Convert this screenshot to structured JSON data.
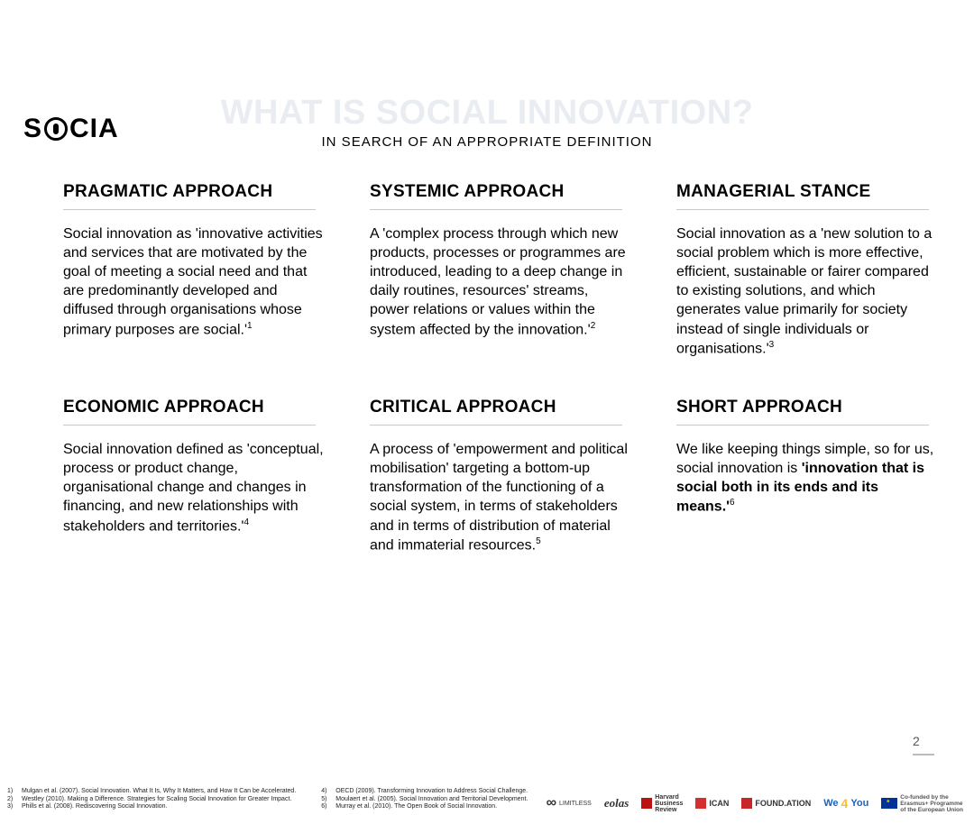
{
  "logo": {
    "pre": "S",
    "post": "CIA"
  },
  "title": {
    "main": "WHAT IS SOCIAL INNOVATION?",
    "main_color": "#e9edf2",
    "sub": "IN SEARCH OF AN APPROPRIATE DEFINITION"
  },
  "approaches": [
    {
      "heading": "PRAGMATIC APPROACH",
      "body_pre": "Social innovation as 'innovative activities and services that are motivated by the goal of meeting a social need and that are predominantly developed and diffused through organisations whose primary purposes are social.'",
      "ref": "1"
    },
    {
      "heading": "SYSTEMIC APPROACH",
      "body_pre": "A 'complex process through which new products, processes or programmes are introduced, leading to a deep change in daily routines, resources' streams, power relations or values within the system affected by the innovation.'",
      "ref": "2"
    },
    {
      "heading": "MANAGERIAL STANCE",
      "body_pre": "Social innovation as a 'new solution to a social problem which is more effective, efficient, sustainable or fairer compared to existing solutions, and which generates value primarily for society instead of single individuals or organisations.'",
      "ref": "3"
    },
    {
      "heading": "ECONOMIC APPROACH",
      "body_pre": "Social innovation defined as 'conceptual, process or product change, organisational change and changes in financing, and new relationships with stakeholders and territories.'",
      "ref": "4"
    },
    {
      "heading": "CRITICAL APPROACH",
      "body_pre": "A process of 'empowerment and political mobilisation' targeting a bottom-up transformation of the functioning of a social system, in terms of stakeholders and in terms of distribution of material and immaterial resources.",
      "ref": "5"
    },
    {
      "heading": "SHORT APPROACH",
      "body_pre": "We like keeping things simple, so for us, social innovation is ",
      "bold": "'innovation that is social both in its ends and its means.'",
      "ref": "6"
    }
  ],
  "page_number": "2",
  "references_left": [
    {
      "n": "1)",
      "t": "Mulgan et al. (2007). Social Innovation. What It Is, Why It Matters, and How It Can be Accelerated."
    },
    {
      "n": "2)",
      "t": "Westley (2010). Making a Difference. Strategies for Scaling Social Innovation for Greater Impact."
    },
    {
      "n": "3)",
      "t": "Phills et al. (2008). Rediscovering Social Innovation."
    }
  ],
  "references_right": [
    {
      "n": "4)",
      "t": "OECD (2009). Transforming Innovation to Address Social Challenge."
    },
    {
      "n": "5)",
      "t": "Moulaert et al. (2005). Social Innovation and Territorial Development."
    },
    {
      "n": "6)",
      "t": "Murray et al. (2010). The Open Book of Social Innovation."
    }
  ],
  "footer_logos": {
    "limitless": "LIMITLESS",
    "eolas": "eolas",
    "hbr": "Harvard\nBusiness\nReview",
    "ican": "ICAN",
    "found": "FOUND.ATION",
    "we4you": "We4You",
    "eu": "Co-funded by the\nErasmus+ Programme\nof the European Union"
  },
  "colors": {
    "divider": "#c9c9c9",
    "text": "#000000",
    "bg": "#ffffff"
  }
}
